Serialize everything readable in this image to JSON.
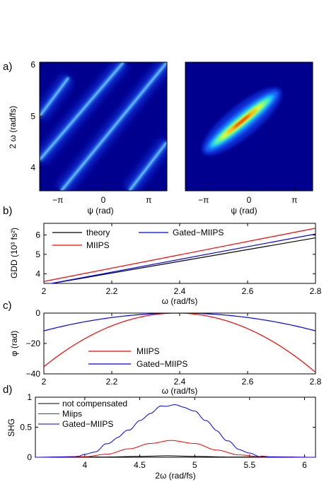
{
  "figure": {
    "panel_labels": [
      "a)",
      "b)",
      "c)",
      "d)"
    ]
  },
  "chart_data": [
    {
      "type": "heatmap",
      "panel": "a-left",
      "title": "",
      "xlabel": "ψ (rad)",
      "ylabel": "2 ω (rad/fs)",
      "xticks": [
        "−π",
        "0",
        "π"
      ],
      "yticks": [
        "4",
        "5",
        "6"
      ],
      "xlim": [
        -4.4,
        4.4
      ],
      "ylim": [
        3.55,
        6.05
      ],
      "stripes": [
        {
          "x0": -4.4,
          "y0": 5.0,
          "x1": -2.4,
          "y1": 5.75
        },
        {
          "x0": -4.4,
          "y0": 4.15,
          "x1": 1.4,
          "y1": 6.05
        },
        {
          "x0": -2.9,
          "y0": 3.55,
          "x1": 4.4,
          "y1": 6.05
        },
        {
          "x0": 1.8,
          "y0": 3.55,
          "x1": 4.4,
          "y1": 4.5
        }
      ],
      "colormap": [
        "#00008f",
        "#0000ff",
        "#00ffff",
        "#ffff00",
        "#ff0000"
      ]
    },
    {
      "type": "heatmap",
      "panel": "a-right",
      "title": "",
      "xlabel": "ψ (rad)",
      "ylabel": "",
      "xticks": [
        "−π",
        "0",
        "π"
      ],
      "yticks": [],
      "xlim": [
        -4.4,
        4.4
      ],
      "ylim": [
        3.55,
        6.05
      ],
      "peak": {
        "x0": -2.9,
        "y0": 4.35,
        "x1": 1.9,
        "y1": 5.45
      }
    },
    {
      "type": "line",
      "panel": "b",
      "title": "",
      "xlabel": "ω  (rad/fs)",
      "ylabel": "GDD (10³ fs²)",
      "xlim": [
        2.0,
        2.8
      ],
      "ylim": [
        3.5,
        6.6
      ],
      "xticks": [
        "2",
        "2.2",
        "2.4",
        "2.6",
        "2.8"
      ],
      "yticks": [
        "4",
        "5",
        "6"
      ],
      "series": [
        {
          "name": "theory",
          "color": "#000000",
          "x": [
            2.0,
            2.8
          ],
          "y": [
            3.25,
            5.85
          ]
        },
        {
          "name": "MIIPS",
          "color": "#ff0000",
          "x": [
            2.0,
            2.8
          ],
          "y": [
            3.6,
            6.35
          ]
        },
        {
          "name": "Gated−MIIPS",
          "color": "#0000ff",
          "x": [
            2.0,
            2.8
          ],
          "y": [
            3.4,
            6.05
          ]
        }
      ],
      "legend_rows": [
        [
          "theory",
          "Gated−MIIPS"
        ],
        [
          "MIIPS"
        ]
      ],
      "legend": "top-left"
    },
    {
      "type": "line",
      "panel": "c",
      "title": "",
      "xlabel": "ω  (rad/fs)",
      "ylabel": "φ (rad)",
      "xlim": [
        2.0,
        2.8
      ],
      "ylim": [
        -40,
        0
      ],
      "xticks": [
        "2",
        "2.2",
        "2.4",
        "2.6",
        "2.8"
      ],
      "yticks": [
        "0",
        "−20",
        "−40"
      ],
      "series": [
        {
          "name": "MIIPS",
          "color": "#ff0000",
          "center": 2.39,
          "curvature": -232
        },
        {
          "name": "Gated−MIIPS",
          "color": "#0000ff",
          "center": 2.4,
          "curvature": -73
        }
      ],
      "legend": "bottom-center"
    },
    {
      "type": "line",
      "panel": "d",
      "title": "",
      "xlabel": "2ω  (rad/fs)",
      "ylabel": "SHG",
      "xlim": [
        3.55,
        6.1
      ],
      "ylim": [
        0,
        1
      ],
      "xticks": [
        "4",
        "4.5",
        "5",
        "5.5",
        "6"
      ],
      "yticks": [
        "0",
        "0.5",
        "1"
      ],
      "series": [
        {
          "name": "not compensated",
          "color": "#000000",
          "x": [
            3.55,
            4.2,
            4.5,
            4.75,
            5.0,
            5.3,
            6.1
          ],
          "y": [
            0.0,
            0.005,
            0.015,
            0.025,
            0.015,
            0.005,
            0.0
          ]
        },
        {
          "name": "Miips",
          "color": "#ff0000",
          "x": [
            3.55,
            4.0,
            4.2,
            4.4,
            4.6,
            4.78,
            5.0,
            5.2,
            5.4,
            5.6,
            6.1
          ],
          "y": [
            0.0,
            0.01,
            0.05,
            0.14,
            0.23,
            0.28,
            0.23,
            0.12,
            0.04,
            0.01,
            0.0
          ]
        },
        {
          "name": "Gated−MIIPS",
          "color": "#0000ff",
          "x": [
            3.55,
            3.9,
            4.0,
            4.1,
            4.2,
            4.3,
            4.4,
            4.5,
            4.6,
            4.7,
            4.8,
            4.9,
            5.0,
            5.1,
            5.2,
            5.3,
            5.4,
            5.5,
            5.6,
            5.7,
            6.1
          ],
          "y": [
            0.0,
            0.01,
            0.04,
            0.1,
            0.22,
            0.33,
            0.46,
            0.6,
            0.74,
            0.85,
            0.87,
            0.84,
            0.76,
            0.62,
            0.44,
            0.27,
            0.14,
            0.06,
            0.02,
            0.005,
            0.0
          ]
        }
      ],
      "legend": "top-left"
    }
  ]
}
